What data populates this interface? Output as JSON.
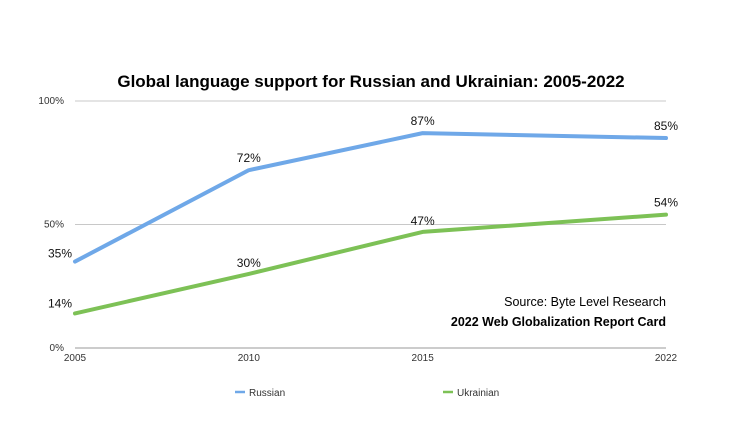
{
  "chart_data": {
    "type": "line",
    "title": "Global language support for Russian and Ukrainian: 2005-2022",
    "x": [
      "2005",
      "2010",
      "2015",
      "2022"
    ],
    "y_ticks": [
      "100%",
      "50%",
      "0%"
    ],
    "ylim": [
      0,
      100
    ],
    "grid": true,
    "legend_position": "bottom",
    "series": [
      {
        "name": "Russian",
        "values": [
          35,
          72,
          87,
          85
        ],
        "labels": [
          "35%",
          "72%",
          "87%",
          "85%"
        ],
        "color": "#6fa8e8"
      },
      {
        "name": "Ukrainian",
        "values": [
          14,
          30,
          47,
          54
        ],
        "labels": [
          "14%",
          "30%",
          "47%",
          "54%"
        ],
        "color": "#7dc156"
      }
    ],
    "annotations": [
      "Source: Byte Level Research",
      "2022 Web Globalization Report Card"
    ]
  }
}
